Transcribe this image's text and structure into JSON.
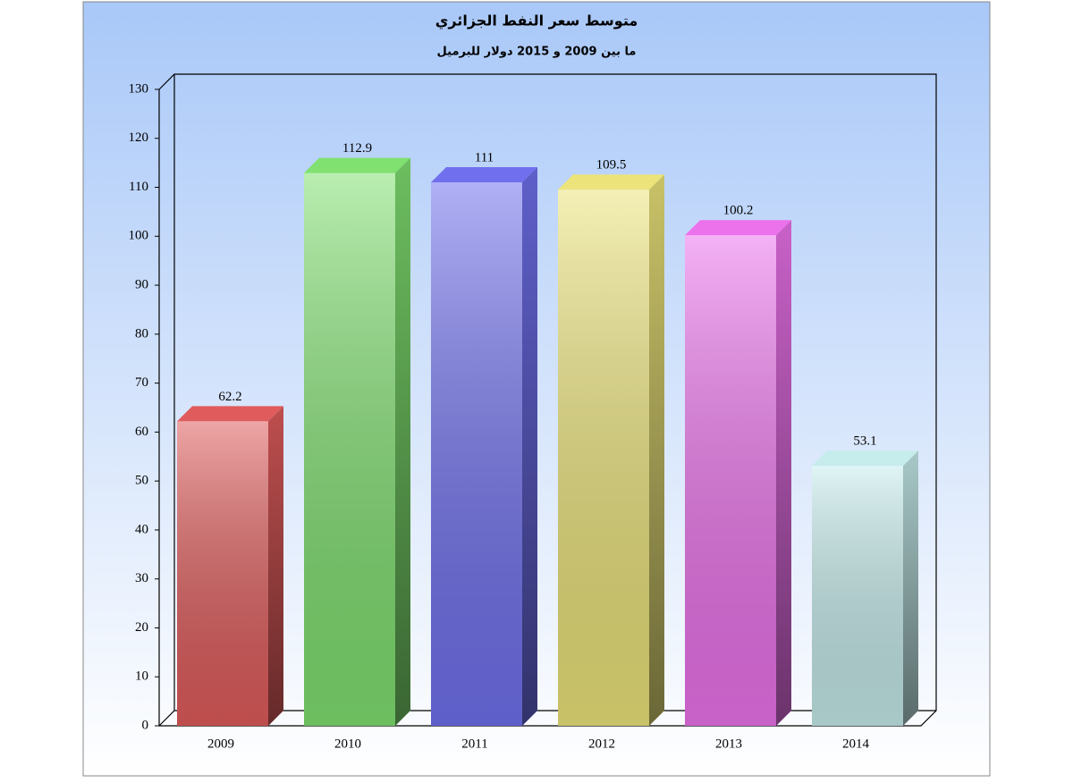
{
  "chart_data": {
    "type": "bar3d",
    "title": "متوسط سعر النفط الجزائري",
    "subtitle": "ما بين 2009 و 2015 دولار للبرميل",
    "categories": [
      "2009",
      "2010",
      "2011",
      "2012",
      "2013",
      "2014"
    ],
    "values": [
      62.2,
      112.9,
      111,
      109.5,
      100.2,
      53.1
    ],
    "colors": [
      "#e05c5c",
      "#80e070",
      "#7070ee",
      "#ece47a",
      "#ec72ec",
      "#c6ecec"
    ],
    "ylim": [
      0,
      130
    ],
    "yticks": [
      0,
      10,
      20,
      30,
      40,
      50,
      60,
      70,
      80,
      90,
      100,
      110,
      120,
      130
    ],
    "grid": false
  }
}
